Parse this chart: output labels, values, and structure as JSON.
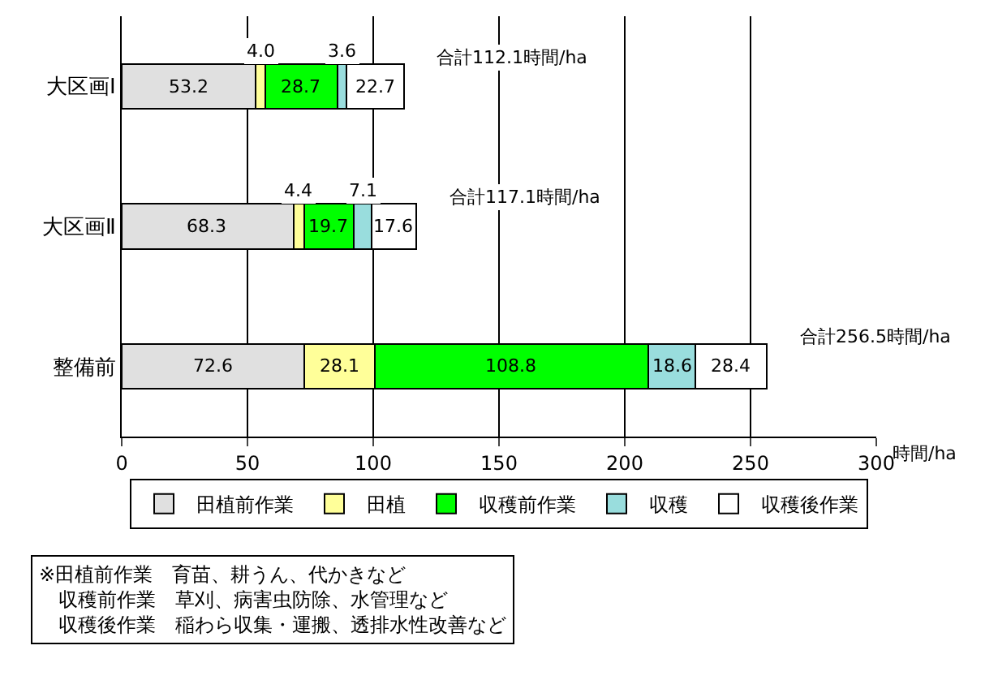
{
  "chart_data": {
    "type": "bar",
    "orientation": "horizontal",
    "stacked": true,
    "categories": [
      "大区画Ⅰ",
      "大区画Ⅱ",
      "整備前"
    ],
    "series": [
      {
        "name": "田植前作業",
        "color": "#e0e0e0",
        "values": [
          53.2,
          68.3,
          72.6
        ]
      },
      {
        "name": "田植",
        "color": "#ffff99",
        "values": [
          4.0,
          4.4,
          28.1
        ],
        "value_labels": [
          "4.0",
          "4.4",
          "28.1"
        ]
      },
      {
        "name": "収穫前作業",
        "color": "#00ff00",
        "values": [
          28.7,
          19.7,
          108.8
        ]
      },
      {
        "name": "収穫",
        "color": "#99dddd",
        "values": [
          3.6,
          7.1,
          18.6
        ]
      },
      {
        "name": "収穫後作業",
        "color": "#ffffff",
        "values": [
          22.7,
          17.6,
          28.4
        ]
      }
    ],
    "data_labels": true,
    "totals": [
      "合計112.1時間/ha",
      "合計117.1時間/ha",
      "合計256.5時間/ha"
    ],
    "xlim": [
      0,
      300
    ],
    "xticks": [
      0,
      50,
      100,
      150,
      200,
      250,
      300
    ],
    "xlabel": "時間/ha",
    "grid": "x",
    "legend": "bottom",
    "annotations": [
      "※田植前作業　育苗、耕うん、代かきなど",
      "　収穫前作業　草刈、病害虫防除、水管理など",
      "　収穫後作業　稲わら収集・運搬、透排水性改善など"
    ]
  }
}
